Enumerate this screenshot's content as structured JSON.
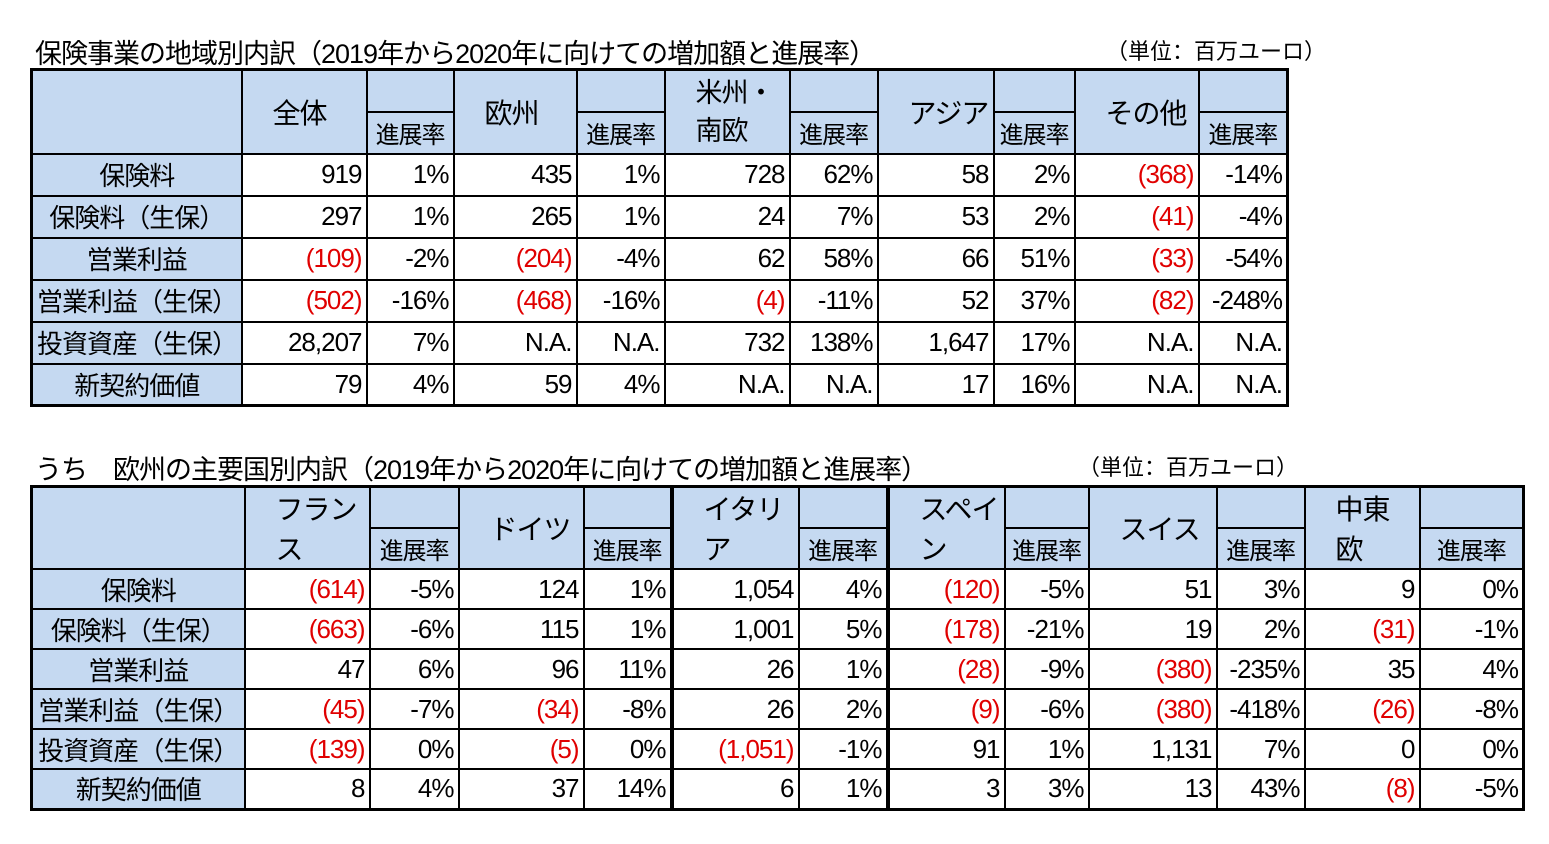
{
  "table1": {
    "title": "保険事業の地域別内訳（2019年から2020年に向けての増加額と進展率）",
    "unit": "（単位：百万ユーロ）",
    "sub_label": "進展率",
    "groups": [
      "全体",
      "欧州",
      "米州・\n南欧",
      "アジア",
      "その他"
    ],
    "rows": [
      {
        "label": "保険料",
        "values": [
          "919",
          "1%",
          "435",
          "1%",
          "728",
          "62%",
          "58",
          "2%",
          "(368)",
          "-14%"
        ]
      },
      {
        "label": "保険料（生保）",
        "values": [
          "297",
          "1%",
          "265",
          "1%",
          "24",
          "7%",
          "53",
          "2%",
          "(41)",
          "-4%"
        ]
      },
      {
        "label": "営業利益",
        "values": [
          "(109)",
          "-2%",
          "(204)",
          "-4%",
          "62",
          "58%",
          "66",
          "51%",
          "(33)",
          "-54%"
        ]
      },
      {
        "label": "営業利益（生保）",
        "values": [
          "(502)",
          "-16%",
          "(468)",
          "-16%",
          "(4)",
          "-11%",
          "52",
          "37%",
          "(82)",
          "-248%"
        ]
      },
      {
        "label": "投資資産（生保）",
        "values": [
          "28,207",
          "7%",
          "N.A.",
          "N.A.",
          "732",
          "138%",
          "1,647",
          "17%",
          "N.A.",
          "N.A."
        ]
      },
      {
        "label": "新契約価値",
        "values": [
          "79",
          "4%",
          "59",
          "4%",
          "N.A.",
          "N.A.",
          "17",
          "16%",
          "N.A.",
          "N.A."
        ]
      }
    ]
  },
  "table2": {
    "title": "うち　欧州の主要国別内訳（2019年から2020年に向けての増加額と進展率）",
    "unit": "（単位：百万ユーロ）",
    "sub_label": "進展率",
    "groups": [
      "フランス",
      "ドイツ",
      "イタリア",
      "スペイン",
      "スイス",
      "中東欧"
    ],
    "rows": [
      {
        "label": "保険料",
        "values": [
          "(614)",
          "-5%",
          "124",
          "1%",
          "1,054",
          "4%",
          "(120)",
          "-5%",
          "51",
          "3%",
          "9",
          "0%"
        ]
      },
      {
        "label": "保険料（生保）",
        "values": [
          "(663)",
          "-6%",
          "115",
          "1%",
          "1,001",
          "5%",
          "(178)",
          "-21%",
          "19",
          "2%",
          "(31)",
          "-1%"
        ]
      },
      {
        "label": "営業利益",
        "values": [
          "47",
          "6%",
          "96",
          "11%",
          "26",
          "1%",
          "(28)",
          "-9%",
          "(380)",
          "-235%",
          "35",
          "4%"
        ]
      },
      {
        "label": "営業利益（生保）",
        "values": [
          "(45)",
          "-7%",
          "(34)",
          "-8%",
          "26",
          "2%",
          "(9)",
          "-6%",
          "(380)",
          "-418%",
          "(26)",
          "-8%"
        ]
      },
      {
        "label": "投資資産（生保）",
        "values": [
          "(139)",
          "0%",
          "(5)",
          "0%",
          "(1,051)",
          "-1%",
          "91",
          "1%",
          "1,131",
          "7%",
          "0",
          "0%"
        ]
      },
      {
        "label": "新契約価値",
        "values": [
          "8",
          "4%",
          "37",
          "14%",
          "6",
          "1%",
          "3",
          "3%",
          "13",
          "43%",
          "(8)",
          "-5%"
        ]
      }
    ]
  },
  "colors": {
    "header_bg": "#c5d9f1",
    "negative": "#e00000"
  }
}
